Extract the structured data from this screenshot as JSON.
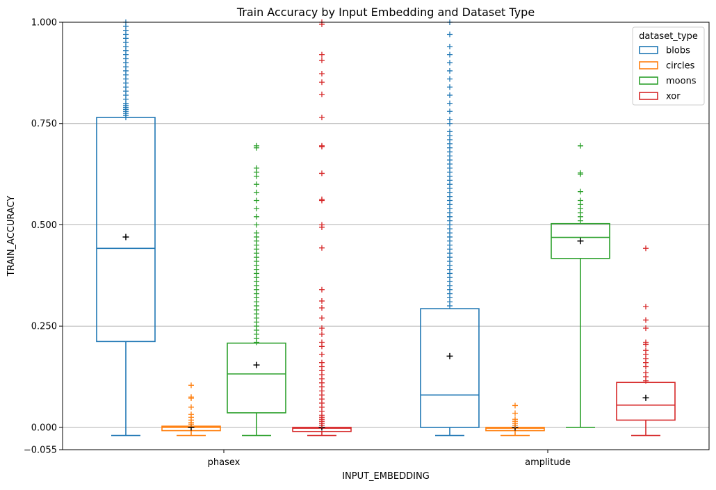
{
  "chart_data": {
    "type": "box",
    "title": "Train Accuracy by Input Embedding and Dataset Type",
    "xlabel": "INPUT_EMBEDDING",
    "ylabel": "TRAIN_ACCURACY",
    "categories": [
      "phasex",
      "amplitude"
    ],
    "ylim": [
      -0.055,
      1.0
    ],
    "yticks": [
      -0.055,
      0.0,
      0.25,
      0.5,
      0.75,
      1.0
    ],
    "ytick_labels": [
      "−0.055",
      "0.000",
      "0.250",
      "0.500",
      "0.750",
      "1.000"
    ],
    "grid": "horizontal",
    "legend": {
      "title": "dataset_type",
      "placement": "top-right"
    },
    "series": [
      {
        "name": "blobs",
        "color": "#1f77b4",
        "boxes": [
          {
            "whisker_low": -0.02,
            "q1": 0.212,
            "median": 0.442,
            "q3": 0.765,
            "whisker_high": 0.765,
            "mean": 0.47,
            "outliers": [
              0.765,
              0.77,
              0.775,
              0.78,
              0.785,
              0.79,
              0.795,
              0.8,
              0.81,
              0.82,
              0.83,
              0.84,
              0.85,
              0.86,
              0.87,
              0.88,
              0.89,
              0.9,
              0.91,
              0.92,
              0.93,
              0.94,
              0.95,
              0.96,
              0.97,
              0.98,
              0.99,
              1.0
            ]
          },
          {
            "whisker_low": -0.02,
            "q1": 0.0,
            "median": 0.08,
            "q3": 0.293,
            "whisker_high": 0.293,
            "mean": 0.176,
            "outliers": [
              0.3,
              0.31,
              0.32,
              0.33,
              0.34,
              0.35,
              0.36,
              0.37,
              0.38,
              0.39,
              0.4,
              0.41,
              0.42,
              0.43,
              0.44,
              0.45,
              0.46,
              0.47,
              0.48,
              0.49,
              0.5,
              0.51,
              0.52,
              0.53,
              0.54,
              0.55,
              0.56,
              0.57,
              0.58,
              0.59,
              0.6,
              0.61,
              0.62,
              0.63,
              0.64,
              0.65,
              0.66,
              0.67,
              0.68,
              0.69,
              0.7,
              0.71,
              0.72,
              0.73,
              0.75,
              0.76,
              0.78,
              0.8,
              0.82,
              0.84,
              0.86,
              0.88,
              0.9,
              0.92,
              0.94,
              0.97,
              1.0
            ]
          }
        ]
      },
      {
        "name": "circles",
        "color": "#ff7f0e",
        "boxes": [
          {
            "whisker_low": -0.02,
            "q1": -0.008,
            "median": 0.0,
            "q3": 0.003,
            "whisker_high": 0.003,
            "mean": 0.0,
            "outliers": [
              0.008,
              0.012,
              0.018,
              0.025,
              0.032,
              0.05,
              0.072,
              0.075,
              0.104
            ]
          },
          {
            "whisker_low": -0.02,
            "q1": -0.008,
            "median": -0.002,
            "q3": 0.0,
            "whisker_high": 0.0,
            "mean": 0.0,
            "outliers": [
              0.005,
              0.01,
              0.015,
              0.02,
              0.035,
              0.054
            ]
          }
        ]
      },
      {
        "name": "moons",
        "color": "#2ca02c",
        "boxes": [
          {
            "whisker_low": -0.02,
            "q1": 0.036,
            "median": 0.132,
            "q3": 0.208,
            "whisker_high": 0.208,
            "mean": 0.154,
            "outliers": [
              0.21,
              0.22,
              0.23,
              0.24,
              0.25,
              0.26,
              0.27,
              0.28,
              0.29,
              0.3,
              0.31,
              0.32,
              0.33,
              0.34,
              0.35,
              0.36,
              0.37,
              0.38,
              0.39,
              0.4,
              0.41,
              0.42,
              0.43,
              0.44,
              0.45,
              0.46,
              0.47,
              0.48,
              0.5,
              0.52,
              0.54,
              0.56,
              0.58,
              0.6,
              0.62,
              0.63,
              0.64,
              0.69,
              0.695
            ]
          },
          {
            "whisker_low": 0.0,
            "q1": 0.417,
            "median": 0.469,
            "q3": 0.503,
            "whisker_high": 0.503,
            "mean": 0.46,
            "outliers": [
              0.51,
              0.52,
              0.53,
              0.54,
              0.55,
              0.56,
              0.582,
              0.625,
              0.628,
              0.695
            ]
          }
        ]
      },
      {
        "name": "xor",
        "color": "#d62728",
        "boxes": [
          {
            "whisker_low": -0.02,
            "q1": -0.01,
            "median": -0.002,
            "q3": 0.0,
            "whisker_high": 0.0,
            "mean": 0.0,
            "outliers": [
              0.005,
              0.01,
              0.015,
              0.02,
              0.025,
              0.03,
              0.04,
              0.05,
              0.06,
              0.07,
              0.08,
              0.09,
              0.1,
              0.11,
              0.12,
              0.13,
              0.14,
              0.15,
              0.16,
              0.18,
              0.2,
              0.21,
              0.23,
              0.245,
              0.27,
              0.295,
              0.312,
              0.34,
              0.443,
              0.494,
              0.5,
              0.56,
              0.563,
              0.627,
              0.693,
              0.695,
              0.765,
              0.822,
              0.852,
              0.873,
              0.906,
              0.92,
              0.995,
              1.0
            ]
          },
          {
            "whisker_low": -0.02,
            "q1": 0.018,
            "median": 0.055,
            "q3": 0.111,
            "whisker_high": 0.111,
            "mean": 0.073,
            "outliers": [
              0.115,
              0.125,
              0.135,
              0.15,
              0.16,
              0.17,
              0.18,
              0.19,
              0.205,
              0.21,
              0.245,
              0.265,
              0.298,
              0.442
            ]
          }
        ]
      }
    ]
  }
}
